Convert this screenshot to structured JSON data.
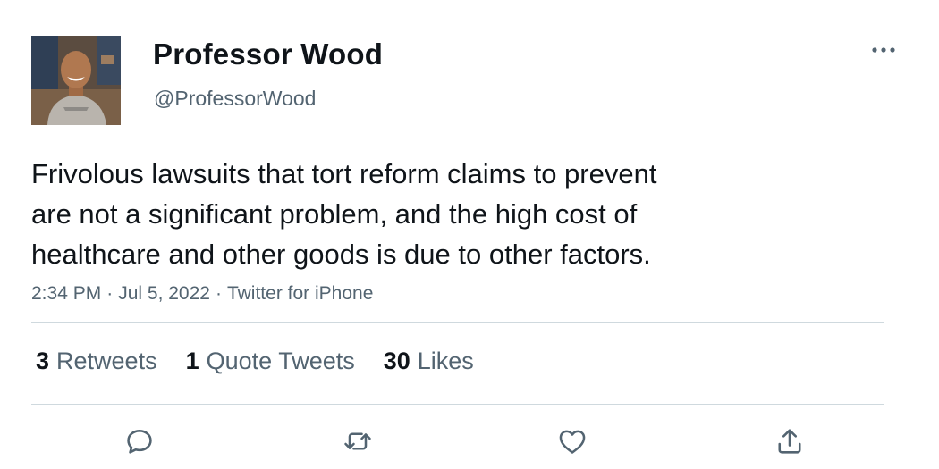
{
  "author": {
    "display_name": "Professor Wood",
    "handle": "@ProfessorWood"
  },
  "tweet": {
    "text": "Frivolous lawsuits that tort reform claims to prevent\nare not a significant problem, and the high cost of\nhealthcare and other goods is due to other factors.",
    "time": "2:34 PM",
    "separator": "·",
    "date": "Jul 5, 2022",
    "source": "Twitter for iPhone"
  },
  "stats": {
    "retweets_count": "3",
    "retweets_label": "Retweets",
    "quotes_count": "1",
    "quotes_label": "Quote Tweets",
    "likes_count": "30",
    "likes_label": "Likes"
  },
  "icons": {
    "more": "more-horizontal-icon",
    "reply": "reply-bubble-icon",
    "retweet": "retweet-arrows-icon",
    "like": "heart-icon",
    "share": "share-upload-icon"
  },
  "colors": {
    "text": "#0f1419",
    "secondary": "#536471",
    "divider": "#cfd9de"
  }
}
